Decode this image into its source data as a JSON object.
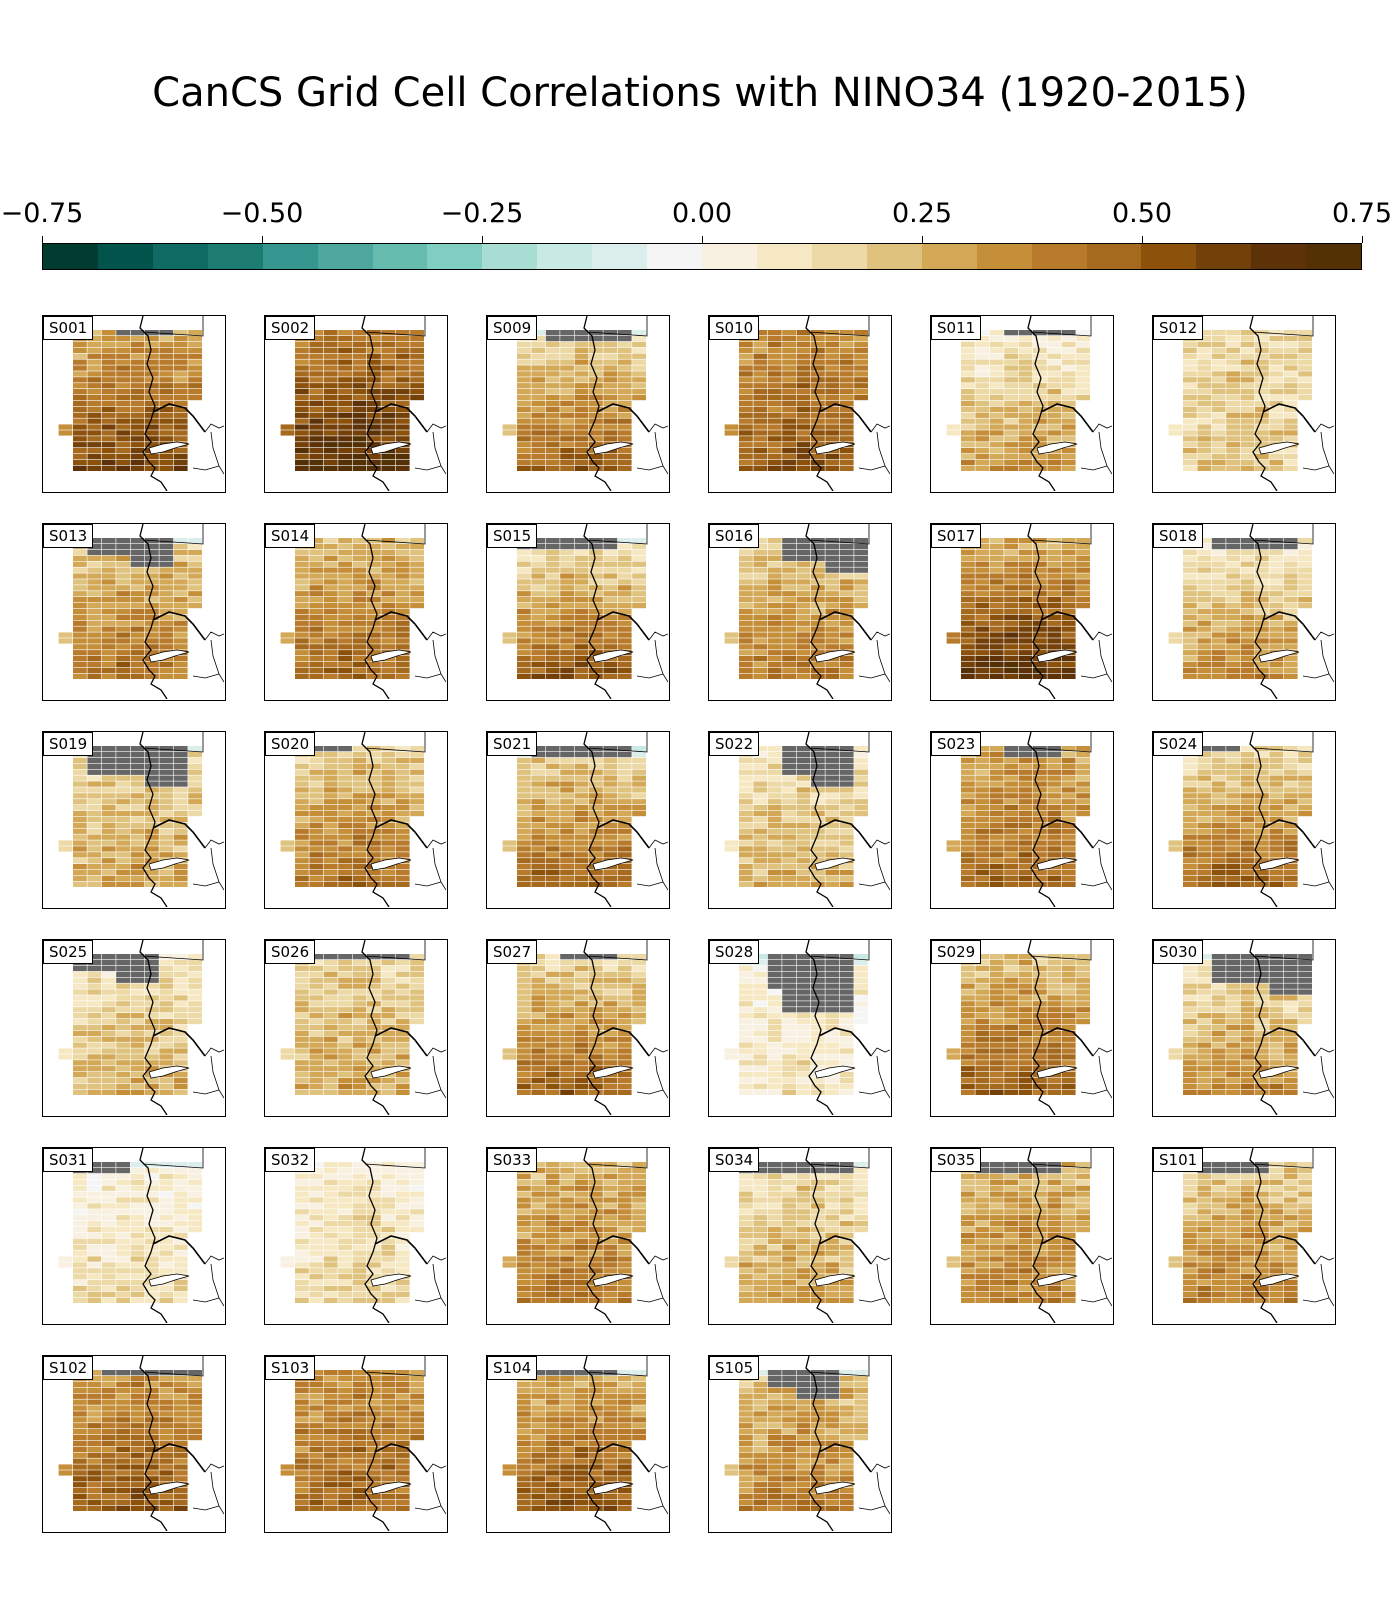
{
  "chart_data": {
    "type": "heatmap",
    "title": "CanCS Grid Cell Correlations with NINO34 (1920-2015)",
    "colorbar": {
      "vmin": -0.75,
      "vmax": 0.75,
      "ticks": [
        "−0.75",
        "−0.50",
        "−0.25",
        "0.00",
        "0.25",
        "0.50",
        "0.75"
      ],
      "colors": [
        "#003c30",
        "#01544b",
        "#0f6b63",
        "#1e7d73",
        "#35978f",
        "#4fa89e",
        "#66bdaf",
        "#80cdc1",
        "#a7ddd3",
        "#c7eae5",
        "#dceeeb",
        "#f5f5f5",
        "#f8f0e0",
        "#f6e8c3",
        "#ecd9a5",
        "#dfc27d",
        "#d3a958",
        "#c58f3a",
        "#b87a2b",
        "#a66a1e",
        "#8c510a",
        "#744009",
        "#5d3208",
        "#543005"
      ],
      "masked_color": "#666666"
    },
    "panels": [
      {
        "label": "S001",
        "mean": 0.42,
        "south": 0.1,
        "masked_top": 1,
        "masked_cols": [
          3,
          6
        ],
        "teal_top": 0,
        "gray_blob": 0
      },
      {
        "label": "S002",
        "mean": 0.52,
        "south": 0.1,
        "masked_top": 0,
        "masked_cols": [
          0,
          0
        ],
        "teal_top": 0,
        "gray_blob": 0
      },
      {
        "label": "S009",
        "mean": 0.3,
        "south": 0.12,
        "masked_top": 2,
        "masked_cols": [
          2,
          7
        ],
        "teal_top": 1,
        "gray_blob": 0
      },
      {
        "label": "S010",
        "mean": 0.42,
        "south": 0.06,
        "masked_top": 0,
        "masked_cols": [
          0,
          0
        ],
        "teal_top": 0,
        "gray_blob": 0
      },
      {
        "label": "S011",
        "mean": 0.18,
        "south": 0.1,
        "masked_top": 1,
        "masked_cols": [
          3,
          7
        ],
        "teal_top": 0,
        "gray_blob": 0
      },
      {
        "label": "S012",
        "mean": 0.16,
        "south": 0.02,
        "masked_top": 0,
        "masked_cols": [
          0,
          0
        ],
        "teal_top": 0,
        "gray_blob": 0
      },
      {
        "label": "S013",
        "mean": 0.3,
        "south": 0.08,
        "masked_top": 3,
        "masked_cols": [
          1,
          6
        ],
        "teal_top": 1,
        "gray_blob": 0
      },
      {
        "label": "S014",
        "mean": 0.34,
        "south": 0.08,
        "masked_top": 0,
        "masked_cols": [
          0,
          0
        ],
        "teal_top": 0,
        "gray_blob": 0
      },
      {
        "label": "S015",
        "mean": 0.3,
        "south": 0.14,
        "masked_top": 2,
        "masked_cols": [
          0,
          6
        ],
        "teal_top": 1,
        "gray_blob": 0
      },
      {
        "label": "S016",
        "mean": 0.28,
        "south": 0.08,
        "masked_top": 4,
        "masked_cols": [
          3,
          8
        ],
        "teal_top": 0,
        "gray_blob": 0
      },
      {
        "label": "S017",
        "mean": 0.45,
        "south": 0.14,
        "masked_top": 0,
        "masked_cols": [
          0,
          0
        ],
        "teal_top": 0,
        "gray_blob": 0
      },
      {
        "label": "S018",
        "mean": 0.22,
        "south": 0.1,
        "masked_top": 2,
        "masked_cols": [
          2,
          7
        ],
        "teal_top": 0,
        "gray_blob": 0
      },
      {
        "label": "S019",
        "mean": 0.22,
        "south": 0.04,
        "masked_top": 5,
        "masked_cols": [
          1,
          7
        ],
        "teal_top": 1,
        "gray_blob": 0
      },
      {
        "label": "S020",
        "mean": 0.3,
        "south": 0.1,
        "masked_top": 1,
        "masked_cols": [
          1,
          3
        ],
        "teal_top": 0,
        "gray_blob": 0
      },
      {
        "label": "S021",
        "mean": 0.3,
        "south": 0.1,
        "masked_top": 2,
        "masked_cols": [
          1,
          7
        ],
        "teal_top": 2,
        "gray_blob": 0
      },
      {
        "label": "S022",
        "mean": 0.18,
        "south": 0.06,
        "masked_top": 5,
        "masked_cols": [
          3,
          7
        ],
        "teal_top": 0,
        "gray_blob": 0
      },
      {
        "label": "S023",
        "mean": 0.36,
        "south": 0.06,
        "masked_top": 2,
        "masked_cols": [
          3,
          6
        ],
        "teal_top": 0,
        "gray_blob": 0
      },
      {
        "label": "S024",
        "mean": 0.3,
        "south": 0.12,
        "masked_top": 1,
        "masked_cols": [
          0,
          3
        ],
        "teal_top": 0,
        "gray_blob": 0
      },
      {
        "label": "S025",
        "mean": 0.18,
        "south": 0.06,
        "masked_top": 3,
        "masked_cols": [
          0,
          5
        ],
        "teal_top": 0,
        "gray_blob": 0
      },
      {
        "label": "S026",
        "mean": 0.22,
        "south": 0.04,
        "masked_top": 1,
        "masked_cols": [
          1,
          7
        ],
        "teal_top": 0,
        "gray_blob": 0
      },
      {
        "label": "S027",
        "mean": 0.3,
        "south": 0.12,
        "masked_top": 1,
        "masked_cols": [
          3,
          6
        ],
        "teal_top": 0,
        "gray_blob": 0
      },
      {
        "label": "S028",
        "mean": 0.06,
        "south": 0.02,
        "masked_top": 6,
        "masked_cols": [
          2,
          7
        ],
        "teal_top": 2,
        "gray_blob": 1
      },
      {
        "label": "S029",
        "mean": 0.34,
        "south": 0.1,
        "masked_top": 0,
        "masked_cols": [
          0,
          0
        ],
        "teal_top": 0,
        "gray_blob": 0
      },
      {
        "label": "S030",
        "mean": 0.22,
        "south": 0.1,
        "masked_top": 5,
        "masked_cols": [
          2,
          8
        ],
        "teal_top": 1,
        "gray_blob": 0
      },
      {
        "label": "S031",
        "mean": 0.08,
        "south": 0.04,
        "masked_top": 2,
        "masked_cols": [
          0,
          3
        ],
        "teal_top": 1,
        "gray_blob": 0
      },
      {
        "label": "S032",
        "mean": 0.1,
        "south": 0.04,
        "masked_top": 0,
        "masked_cols": [
          0,
          0
        ],
        "teal_top": 0,
        "gray_blob": 0
      },
      {
        "label": "S033",
        "mean": 0.32,
        "south": 0.06,
        "masked_top": 0,
        "masked_cols": [
          0,
          0
        ],
        "teal_top": 0,
        "gray_blob": 0
      },
      {
        "label": "S034",
        "mean": 0.2,
        "south": 0.06,
        "masked_top": 2,
        "masked_cols": [
          0,
          7
        ],
        "teal_top": 1,
        "gray_blob": 0
      },
      {
        "label": "S035",
        "mean": 0.3,
        "south": 0.04,
        "masked_top": 2,
        "masked_cols": [
          1,
          6
        ],
        "teal_top": 0,
        "gray_blob": 0
      },
      {
        "label": "S101",
        "mean": 0.28,
        "south": 0.08,
        "masked_top": 2,
        "masked_cols": [
          1,
          5
        ],
        "teal_top": 0,
        "gray_blob": 0
      },
      {
        "label": "S102",
        "mean": 0.4,
        "south": 0.06,
        "masked_top": 1,
        "masked_cols": [
          2,
          8
        ],
        "teal_top": 0,
        "gray_blob": 0
      },
      {
        "label": "S103",
        "mean": 0.38,
        "south": 0.04,
        "masked_top": 0,
        "masked_cols": [
          0,
          0
        ],
        "teal_top": 0,
        "gray_blob": 0
      },
      {
        "label": "S104",
        "mean": 0.38,
        "south": 0.1,
        "masked_top": 1,
        "masked_cols": [
          1,
          6
        ],
        "teal_top": 1,
        "gray_blob": 0
      },
      {
        "label": "S105",
        "mean": 0.3,
        "south": 0.06,
        "masked_top": 3,
        "masked_cols": [
          2,
          6
        ],
        "teal_top": 1,
        "gray_blob": 0
      }
    ]
  }
}
